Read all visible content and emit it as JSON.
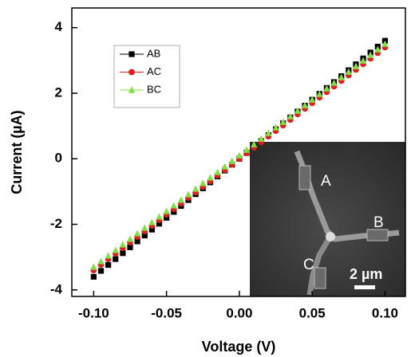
{
  "chart_data": {
    "type": "scatter",
    "xlabel": "Voltage (V)",
    "ylabel": "Current (µA)",
    "x": [
      -0.1,
      -0.095,
      -0.09,
      -0.085,
      -0.08,
      -0.075,
      -0.07,
      -0.065,
      -0.06,
      -0.055,
      -0.05,
      -0.045,
      -0.04,
      -0.035,
      -0.03,
      -0.025,
      -0.02,
      -0.015,
      -0.01,
      -0.005,
      0,
      0.005,
      0.01,
      0.015,
      0.02,
      0.025,
      0.03,
      0.035,
      0.04,
      0.045,
      0.05,
      0.055,
      0.06,
      0.065,
      0.07,
      0.075,
      0.08,
      0.085,
      0.09,
      0.095,
      0.1
    ],
    "series": [
      {
        "name": "AB",
        "color": "#000000",
        "marker": "square",
        "values": [
          -3.6,
          -3.42,
          -3.24,
          -3.06,
          -2.88,
          -2.7,
          -2.52,
          -2.34,
          -2.16,
          -1.98,
          -1.8,
          -1.62,
          -1.44,
          -1.26,
          -1.08,
          -0.9,
          -0.72,
          -0.54,
          -0.36,
          -0.18,
          0,
          0.18,
          0.36,
          0.54,
          0.72,
          0.9,
          1.08,
          1.26,
          1.44,
          1.62,
          1.8,
          1.98,
          2.16,
          2.34,
          2.52,
          2.7,
          2.88,
          3.06,
          3.24,
          3.42,
          3.6
        ]
      },
      {
        "name": "AC",
        "color": "#e02020",
        "marker": "circle",
        "values": [
          -3.4,
          -3.23,
          -3.06,
          -2.89,
          -2.72,
          -2.55,
          -2.38,
          -2.21,
          -2.04,
          -1.87,
          -1.7,
          -1.53,
          -1.36,
          -1.19,
          -1.02,
          -0.85,
          -0.68,
          -0.51,
          -0.34,
          -0.17,
          0,
          0.17,
          0.34,
          0.51,
          0.68,
          0.85,
          1.02,
          1.19,
          1.36,
          1.53,
          1.7,
          1.87,
          2.04,
          2.21,
          2.38,
          2.55,
          2.72,
          2.89,
          3.06,
          3.23,
          3.4
        ]
      },
      {
        "name": "BC",
        "color": "#80e040",
        "marker": "triangle",
        "values": [
          -3.3,
          -3.13,
          -2.96,
          -2.79,
          -2.62,
          -2.45,
          -2.28,
          -2.11,
          -1.94,
          -1.77,
          -1.6,
          -1.43,
          -1.26,
          -1.09,
          -0.92,
          -0.75,
          -0.58,
          -0.41,
          -0.24,
          -0.07,
          0.1,
          0.27,
          0.44,
          0.61,
          0.78,
          0.95,
          1.12,
          1.29,
          1.46,
          1.63,
          1.8,
          1.97,
          2.14,
          2.31,
          2.48,
          2.65,
          2.82,
          2.99,
          3.16,
          3.33,
          3.5
        ]
      }
    ],
    "xlim": [
      -0.115,
      0.114
    ],
    "ylim": [
      -4.2,
      4.6
    ],
    "xticks": [
      {
        "value": -0.1,
        "label": "-0.10"
      },
      {
        "value": -0.05,
        "label": "-0.05"
      },
      {
        "value": 0,
        "label": "0.00"
      },
      {
        "value": 0.05,
        "label": "0.05"
      },
      {
        "value": 0.1,
        "label": "0.10"
      }
    ],
    "yticks": [
      -4,
      -2,
      0,
      2,
      4
    ],
    "legend": "upper left",
    "inset": {
      "labels": [
        "A",
        "B",
        "C"
      ],
      "scale_bar": "2 µm"
    }
  }
}
